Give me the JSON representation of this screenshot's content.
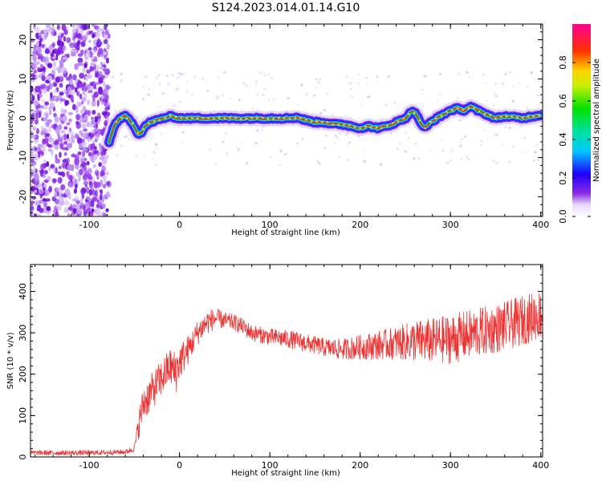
{
  "chart_data": [
    {
      "type": "heatmap",
      "title": "S124.2023.014.01.14.G10",
      "xlabel": "Height of straight line (km)",
      "ylabel": "Frequency (Hz)",
      "xlim": [
        -165,
        402
      ],
      "ylim": [
        -25,
        24
      ],
      "xticks": [
        -100,
        0,
        100,
        200,
        300,
        400
      ],
      "yticks": [
        -20,
        -10,
        0,
        10,
        20
      ],
      "colorbar": {
        "label": "Normalized spectral amplitude",
        "range": [
          0,
          1
        ],
        "ticks": [
          "0.0",
          "0.2",
          "0.4",
          "0.6",
          "0.8"
        ],
        "colormap": "rainbow (purple-blue-cyan-green-yellow-red-pink)"
      },
      "noise_region": {
        "x_range": [
          -165,
          -78
        ],
        "y_range": [
          -25,
          24
        ]
      },
      "signal_ridge": {
        "name": "frequency ridge",
        "x": [
          -78,
          -74,
          -70,
          -65,
          -60,
          -55,
          -50,
          -46,
          -42,
          -38,
          -32,
          -25,
          -18,
          -10,
          0,
          20,
          40,
          60,
          80,
          100,
          120,
          130,
          140,
          150,
          160,
          170,
          180,
          190,
          200,
          210,
          220,
          230,
          240,
          250,
          258,
          262,
          268,
          272,
          278,
          285,
          292,
          300,
          308,
          315,
          322,
          330,
          340,
          350,
          360,
          370,
          380,
          390,
          400
        ],
        "y": [
          -6,
          -3,
          -1,
          0,
          0.5,
          -0.5,
          -2,
          -4,
          -3.5,
          -2,
          -1,
          -0.5,
          0,
          0.5,
          0,
          0,
          0,
          0,
          0,
          0,
          0,
          0.2,
          -0.5,
          -1,
          -1,
          -1.5,
          -1.5,
          -2,
          -2.5,
          -2,
          -2.5,
          -2,
          -1,
          0,
          2,
          1,
          -1.5,
          -2.5,
          -1,
          0,
          1,
          2,
          2.5,
          2,
          3,
          2,
          1,
          0,
          0.5,
          0.3,
          0,
          0.5,
          0.8
        ]
      }
    },
    {
      "type": "line",
      "xlabel": "Height of straight line (km)",
      "ylabel": "SNR (10 * v/v)",
      "xlim": [
        -165,
        402
      ],
      "ylim": [
        0,
        465
      ],
      "xticks": [
        -100,
        0,
        100,
        200,
        300,
        400
      ],
      "yticks": [
        0,
        100,
        200,
        300,
        400
      ],
      "series": [
        {
          "color": "#ee3333",
          "x": [
            -165,
            -100,
            -60,
            -50,
            -45,
            -40,
            -30,
            -20,
            -10,
            -5,
            0,
            10,
            20,
            30,
            40,
            50,
            60,
            70,
            80,
            100,
            120,
            140,
            160,
            180,
            200,
            220,
            240,
            260,
            280,
            300,
            320,
            340,
            360,
            380,
            400
          ],
          "y": [
            10,
            10,
            12,
            20,
            80,
            130,
            160,
            190,
            220,
            200,
            230,
            260,
            300,
            325,
            335,
            330,
            325,
            315,
            300,
            290,
            285,
            275,
            265,
            260,
            265,
            270,
            275,
            280,
            280,
            285,
            295,
            305,
            315,
            330,
            345
          ],
          "noise": [
            6,
            6,
            6,
            8,
            35,
            45,
            45,
            45,
            45,
            60,
            45,
            35,
            30,
            30,
            25,
            20,
            20,
            20,
            20,
            20,
            22,
            22,
            22,
            25,
            30,
            35,
            40,
            50,
            55,
            60,
            60,
            60,
            60,
            60,
            60
          ]
        }
      ]
    }
  ]
}
